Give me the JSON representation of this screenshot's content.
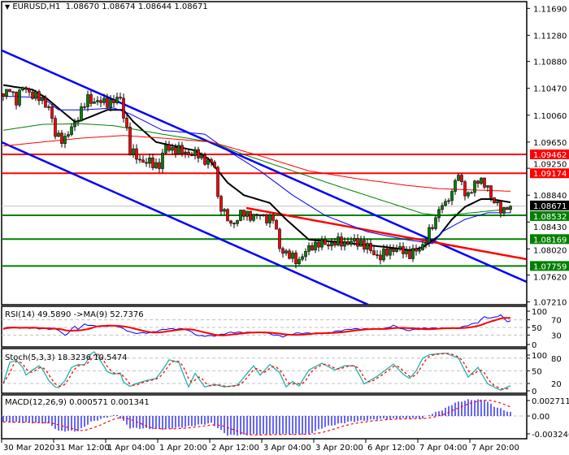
{
  "header": {
    "arrow_icon": "triangle-down-icon",
    "symbol": "EURUSD,H1",
    "open": "1.08670",
    "high": "1.08674",
    "low": "1.08644",
    "close": "1.08671"
  },
  "colors": {
    "resistance": "#FF0000",
    "support": "#008000",
    "channel": "#0000FF",
    "current": "#000000",
    "stoch_main": "#20B2AA",
    "bull": "#008000",
    "bear": "#FF0000"
  },
  "main": {
    "price_ticks": [
      "1.11690",
      "1.11280",
      "1.10880",
      "1.10470",
      "1.10060",
      "1.09650",
      "1.09250",
      "1.08840",
      "1.08430",
      "1.08020",
      "1.07620",
      "1.07210"
    ],
    "levels": [
      {
        "label": "1.09462",
        "price": 1.09462,
        "kind": "resistance"
      },
      {
        "label": "1.09174",
        "price": 1.09174,
        "kind": "resistance"
      },
      {
        "label": "1.08671",
        "price": 1.08671,
        "kind": "current"
      },
      {
        "label": "1.08532",
        "price": 1.08532,
        "kind": "support"
      },
      {
        "label": "1.08169",
        "price": 1.08169,
        "kind": "support"
      },
      {
        "label": "1.07759",
        "price": 1.07759,
        "kind": "support"
      }
    ],
    "close_keypoints": [
      [
        0,
        1.1035
      ],
      [
        2,
        1.1045
      ],
      [
        4,
        1.103
      ],
      [
        6,
        1.1048
      ],
      [
        10,
        1.1035
      ],
      [
        14,
        1.102
      ],
      [
        16,
        1.0975
      ],
      [
        19,
        1.097
      ],
      [
        21,
        1.0985
      ],
      [
        24,
        1.1014
      ],
      [
        26,
        1.103
      ],
      [
        31,
        1.1025
      ],
      [
        36,
        1.103
      ],
      [
        38,
        1.0985
      ],
      [
        39,
        1.095
      ],
      [
        43,
        1.0935
      ],
      [
        48,
        1.093
      ],
      [
        50,
        1.0958
      ],
      [
        55,
        1.095
      ],
      [
        60,
        1.0945
      ],
      [
        63,
        1.0935
      ],
      [
        65,
        1.0928
      ],
      [
        66,
        1.088
      ],
      [
        68,
        1.0855
      ],
      [
        70,
        1.0838
      ],
      [
        73,
        1.0855
      ],
      [
        79,
        1.0852
      ],
      [
        83,
        1.0848
      ],
      [
        85,
        1.0805
      ],
      [
        88,
        1.079
      ],
      [
        91,
        1.0785
      ],
      [
        95,
        1.0808
      ],
      [
        104,
        1.0812
      ],
      [
        110,
        1.0812
      ],
      [
        114,
        1.0795
      ],
      [
        116,
        1.079
      ],
      [
        120,
        1.0803
      ],
      [
        125,
        1.0795
      ],
      [
        128,
        1.08
      ],
      [
        130,
        1.0818
      ],
      [
        133,
        1.0845
      ],
      [
        134,
        1.0868
      ],
      [
        136,
        1.087
      ],
      [
        138,
        1.0885
      ],
      [
        139,
        1.0915
      ],
      [
        141,
        1.0905
      ],
      [
        142,
        1.088
      ],
      [
        144,
        1.0895
      ],
      [
        146,
        1.0905
      ],
      [
        149,
        1.09
      ],
      [
        150,
        1.0878
      ],
      [
        152,
        1.0868
      ],
      [
        154,
        1.0862
      ],
      [
        156,
        1.0867
      ]
    ],
    "moving_averages": [
      {
        "name": "ma-fast-black",
        "color": "#000000",
        "width": 2,
        "points": [
          [
            0,
            1.1052
          ],
          [
            9,
            1.1045
          ],
          [
            13,
            1.1033
          ],
          [
            22,
            1.0996
          ],
          [
            24,
            1.0998
          ],
          [
            32,
            1.1014
          ],
          [
            37,
            1.1014
          ],
          [
            40,
            1.0996
          ],
          [
            47,
            1.0965
          ],
          [
            59,
            1.0952
          ],
          [
            63,
            1.094
          ],
          [
            69,
            1.0903
          ],
          [
            74,
            1.0884
          ],
          [
            82,
            1.0872
          ],
          [
            87,
            1.0847
          ],
          [
            94,
            1.0816
          ],
          [
            104,
            1.0812
          ],
          [
            119,
            1.0804
          ],
          [
            125,
            1.08
          ],
          [
            129,
            1.0804
          ],
          [
            134,
            1.0822
          ],
          [
            138,
            1.0847
          ],
          [
            142,
            1.0866
          ],
          [
            147,
            1.0878
          ],
          [
            150,
            1.0878
          ],
          [
            156,
            1.0873
          ]
        ]
      },
      {
        "name": "ma-blue",
        "color": "#0000FF",
        "width": 1,
        "points": [
          [
            0,
            1.1035
          ],
          [
            12,
            1.1033
          ],
          [
            17,
            1.1014
          ],
          [
            24,
            1.1014
          ],
          [
            34,
            1.1017
          ],
          [
            39,
            1.1008
          ],
          [
            49,
            1.0983
          ],
          [
            62,
            1.0977
          ],
          [
            69,
            1.0952
          ],
          [
            79,
            1.0921
          ],
          [
            89,
            1.0884
          ],
          [
            99,
            1.0853
          ],
          [
            112,
            1.0828
          ],
          [
            124,
            1.0816
          ],
          [
            132,
            1.081
          ],
          [
            135,
            1.0828
          ],
          [
            142,
            1.0847
          ],
          [
            149,
            1.0857
          ],
          [
            156,
            1.0857
          ]
        ]
      },
      {
        "name": "ma-green",
        "color": "#008000",
        "width": 1,
        "points": [
          [
            0,
            1.0983
          ],
          [
            12,
            1.0992
          ],
          [
            24,
            1.0993
          ],
          [
            34,
            1.099
          ],
          [
            49,
            1.0977
          ],
          [
            64,
            1.0965
          ],
          [
            74,
            1.0946
          ],
          [
            89,
            1.0921
          ],
          [
            104,
            1.0896
          ],
          [
            119,
            1.0872
          ],
          [
            129,
            1.0856
          ],
          [
            135,
            1.0853
          ],
          [
            144,
            1.0857
          ],
          [
            156,
            1.0863
          ]
        ]
      },
      {
        "name": "ma-red",
        "color": "#FF0000",
        "width": 1,
        "points": [
          [
            0,
            1.0959
          ],
          [
            12,
            1.0965
          ],
          [
            24,
            1.0971
          ],
          [
            37,
            1.0975
          ],
          [
            49,
            1.0971
          ],
          [
            64,
            1.0965
          ],
          [
            79,
            1.0944
          ],
          [
            94,
            1.0921
          ],
          [
            109,
            1.0909
          ],
          [
            124,
            1.0899
          ],
          [
            134,
            1.0894
          ],
          [
            144,
            1.0892
          ],
          [
            156,
            1.089
          ]
        ]
      }
    ],
    "trendlines": [
      {
        "name": "channel-upper-line",
        "color": "#0000FF",
        "from": [
          -0.5,
          1.11049
        ],
        "to": [
          161,
          1.07515
        ]
      },
      {
        "name": "channel-lower-line",
        "color": "#0000FF",
        "from": [
          -0.5,
          1.09648
        ],
        "to": [
          112.25,
          1.07168
        ]
      },
      {
        "name": "red-trendline",
        "color": "#FF0000",
        "from": [
          74.75,
          1.08644
        ],
        "to": [
          161,
          1.07862
        ]
      }
    ]
  },
  "rsi": {
    "label": "RSI(14) 49.5890  ->MA(9) 52.7376",
    "ticks": [
      "100",
      "70",
      "50",
      "30",
      "0"
    ],
    "keypoints": [
      [
        0,
        46
      ],
      [
        2,
        52
      ],
      [
        4,
        49
      ],
      [
        7,
        49
      ],
      [
        11,
        47
      ],
      [
        14,
        46
      ],
      [
        17,
        44
      ],
      [
        18,
        36
      ],
      [
        19,
        28
      ],
      [
        20,
        36
      ],
      [
        21,
        46
      ],
      [
        22,
        52
      ],
      [
        23,
        46
      ],
      [
        25,
        58
      ],
      [
        28,
        54
      ],
      [
        35,
        54
      ],
      [
        37,
        46
      ],
      [
        40,
        35
      ],
      [
        45,
        36
      ],
      [
        50,
        46
      ],
      [
        56,
        46
      ],
      [
        60,
        28
      ],
      [
        65,
        28
      ],
      [
        70,
        37
      ],
      [
        80,
        37
      ],
      [
        86,
        26
      ],
      [
        90,
        35
      ],
      [
        99,
        35
      ],
      [
        107,
        46
      ],
      [
        117,
        46
      ],
      [
        120,
        55
      ],
      [
        124,
        42
      ],
      [
        130,
        48
      ],
      [
        140,
        48
      ],
      [
        143,
        56
      ],
      [
        146,
        63
      ],
      [
        148,
        78
      ],
      [
        150,
        74
      ],
      [
        153,
        82
      ],
      [
        155,
        66
      ],
      [
        156,
        66
      ]
    ]
  },
  "stoch": {
    "label": "Stoch(5,3,3) 18.3236 10.5474",
    "ticks": [
      "100",
      "80",
      "50",
      "20",
      "0"
    ],
    "keypoints": [
      [
        0,
        20
      ],
      [
        1,
        45
      ],
      [
        2,
        70
      ],
      [
        4,
        75
      ],
      [
        6,
        58
      ],
      [
        7,
        40
      ],
      [
        9,
        52
      ],
      [
        11,
        62
      ],
      [
        12,
        55
      ],
      [
        14,
        27
      ],
      [
        16,
        12
      ],
      [
        17,
        10
      ],
      [
        19,
        27
      ],
      [
        21,
        58
      ],
      [
        23,
        65
      ],
      [
        25,
        64
      ],
      [
        27,
        90
      ],
      [
        28,
        95
      ],
      [
        29,
        85
      ],
      [
        32,
        48
      ],
      [
        34,
        42
      ],
      [
        36,
        45
      ],
      [
        37,
        23
      ],
      [
        39,
        13
      ],
      [
        41,
        20
      ],
      [
        44,
        27
      ],
      [
        47,
        32
      ],
      [
        49,
        52
      ],
      [
        51,
        76
      ],
      [
        54,
        70
      ],
      [
        56,
        30
      ],
      [
        57,
        12
      ],
      [
        59,
        44
      ],
      [
        62,
        12
      ],
      [
        65,
        18
      ],
      [
        68,
        12
      ],
      [
        72,
        16
      ],
      [
        77,
        62
      ],
      [
        79,
        40
      ],
      [
        82,
        65
      ],
      [
        85,
        46
      ],
      [
        87,
        12
      ],
      [
        89,
        25
      ],
      [
        91,
        14
      ],
      [
        94,
        52
      ],
      [
        98,
        68
      ],
      [
        102,
        52
      ],
      [
        105,
        62
      ],
      [
        108,
        62
      ],
      [
        111,
        19
      ],
      [
        115,
        37
      ],
      [
        120,
        66
      ],
      [
        123,
        42
      ],
      [
        125,
        32
      ],
      [
        127,
        50
      ],
      [
        129,
        80
      ],
      [
        131,
        88
      ],
      [
        136,
        92
      ],
      [
        140,
        80
      ],
      [
        143,
        35
      ],
      [
        146,
        58
      ],
      [
        149,
        19
      ],
      [
        153,
        4
      ],
      [
        156,
        15
      ]
    ]
  },
  "macd": {
    "label": "MACD(12,26,9) 0.000571 0.001341",
    "ticks": [
      "0.002711",
      "0.00",
      "-0.003246"
    ],
    "keypoints": [
      [
        0,
        -0.001
      ],
      [
        14,
        -0.0012
      ],
      [
        17,
        -0.0025
      ],
      [
        23,
        -0.0025
      ],
      [
        27,
        -0.001
      ],
      [
        32,
        -0.0002
      ],
      [
        35,
        0.0002
      ],
      [
        39,
        -0.002
      ],
      [
        49,
        -0.0022
      ],
      [
        56,
        -0.0018
      ],
      [
        64,
        -0.0012
      ],
      [
        69,
        -0.0032
      ],
      [
        79,
        -0.0031
      ],
      [
        94,
        -0.003
      ],
      [
        99,
        -0.0018
      ],
      [
        106,
        -0.001
      ],
      [
        116,
        -0.0005
      ],
      [
        129,
        -0.0004
      ],
      [
        131,
        0.0002
      ],
      [
        135,
        0.001
      ],
      [
        139,
        0.0022
      ],
      [
        143,
        0.0027
      ],
      [
        148,
        0.0027
      ],
      [
        151,
        0.0016
      ],
      [
        156,
        0.0006
      ]
    ]
  },
  "time_axis": {
    "labels": [
      "30 Mar 2020",
      "31 Mar 12:00",
      "1 Apr 04:00",
      "1 Apr 20:00",
      "2 Apr 12:00",
      "3 Apr 04:00",
      "3 Apr 20:00",
      "6 Apr 12:00",
      "7 Apr 04:00",
      "7 Apr 20:00"
    ]
  }
}
